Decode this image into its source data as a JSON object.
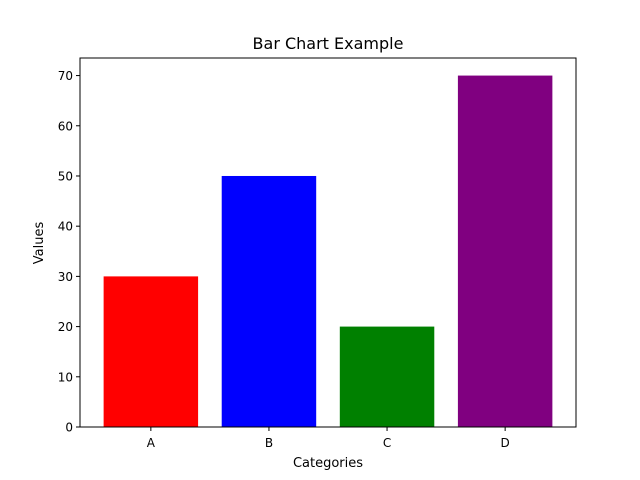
{
  "chart_data": {
    "type": "bar",
    "title": "Bar Chart Example",
    "xlabel": "Categories",
    "ylabel": "Values",
    "categories": [
      "A",
      "B",
      "C",
      "D"
    ],
    "values": [
      30,
      50,
      20,
      70
    ],
    "colors": [
      "#ff0000",
      "#0000ff",
      "#008000",
      "#800080"
    ],
    "ylim": [
      0,
      73.5
    ],
    "yticks": [
      0,
      10,
      20,
      30,
      40,
      50,
      60,
      70
    ],
    "grid": false,
    "legend": false
  }
}
